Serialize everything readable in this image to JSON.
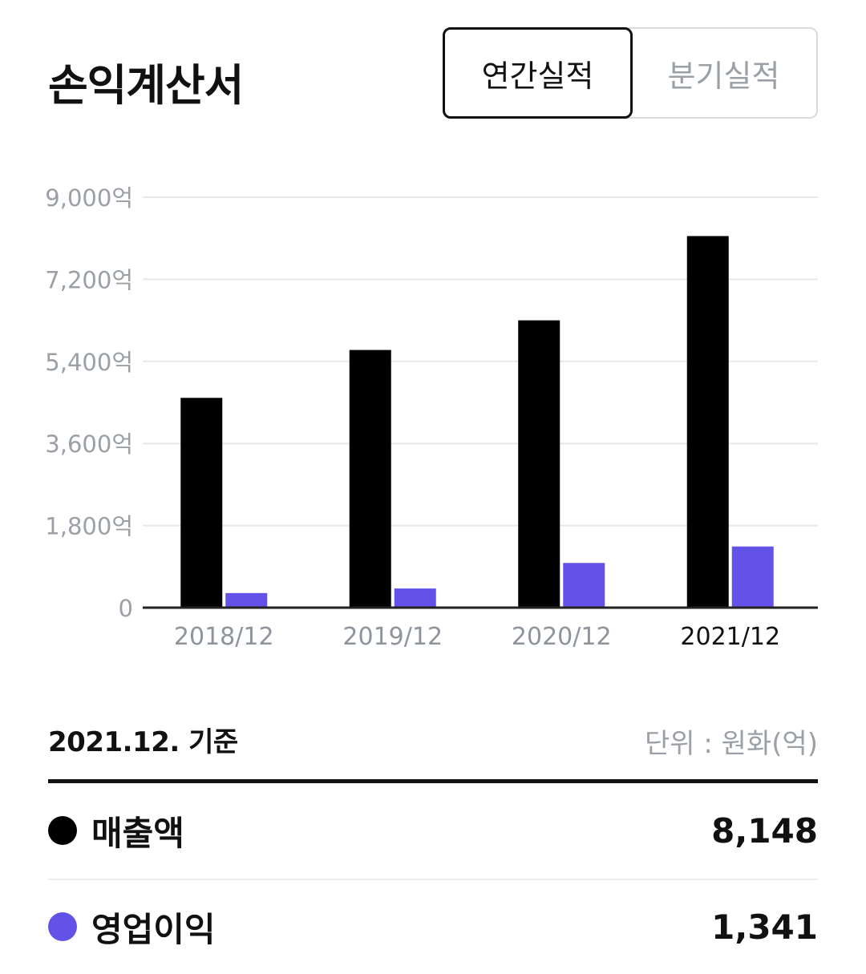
{
  "header": {
    "title": "손익계산서",
    "tabs": [
      {
        "label": "연간실적",
        "active": true
      },
      {
        "label": "분기실적",
        "active": false
      }
    ]
  },
  "chart_data": {
    "type": "bar",
    "categories": [
      "2018/12",
      "2019/12",
      "2020/12",
      "2021/12"
    ],
    "highlighted_category": "2021/12",
    "ylim": [
      0,
      9000
    ],
    "ytick_labels": [
      "0",
      "1,800억",
      "3,600억",
      "5,400억",
      "7,200억",
      "9,000억"
    ],
    "ytick_values": [
      0,
      1800,
      3600,
      5400,
      7200,
      9000
    ],
    "grid": true,
    "series": [
      {
        "name": "매출액",
        "color": "#000000",
        "values": [
          4600,
          5650,
          6300,
          8148
        ]
      },
      {
        "name": "영업이익",
        "color": "#6352e8",
        "values": [
          320,
          420,
          980,
          1341
        ]
      }
    ]
  },
  "summary": {
    "basis": "2021.12. 기준",
    "unit": "단위 : 원화(억)",
    "rows": [
      {
        "label": "매출액",
        "value": "8,148",
        "color": "#000000"
      },
      {
        "label": "영업이익",
        "value": "1,341",
        "color": "#6352e8"
      }
    ]
  }
}
